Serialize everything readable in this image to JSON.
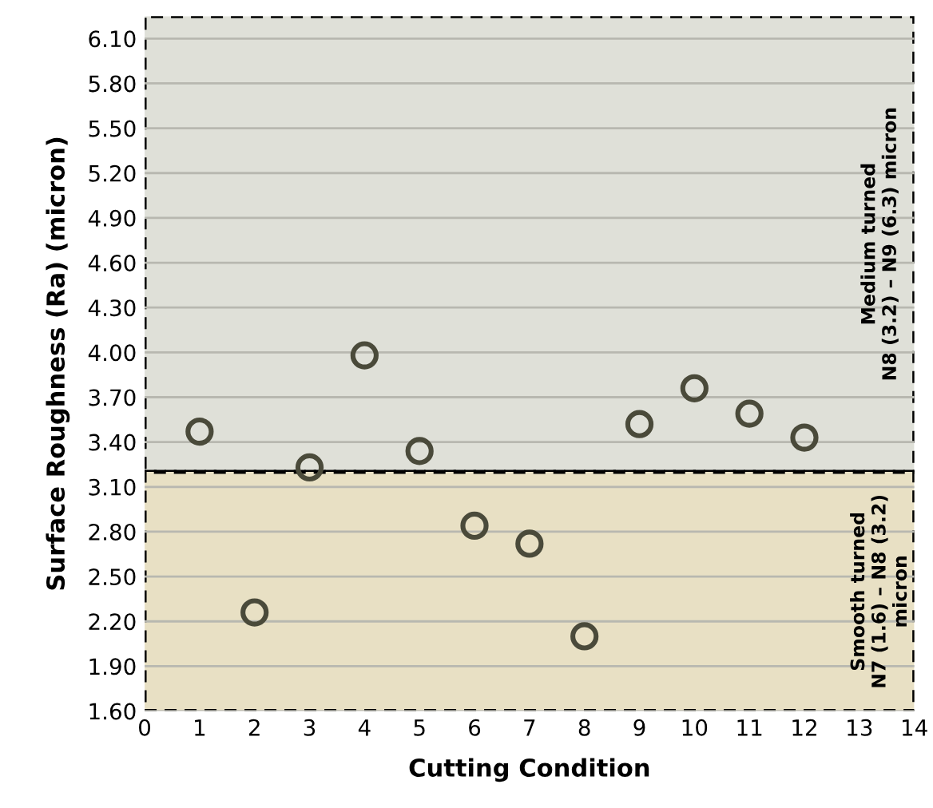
{
  "chart_data": {
    "type": "scatter",
    "xlabel": "Cutting Condition",
    "ylabel": "Surface Roughness (Ra) (micron)",
    "x": [
      1,
      2,
      3,
      4,
      5,
      6,
      7,
      8,
      9,
      10,
      11,
      12
    ],
    "series": [
      {
        "color": "#4a4a3a",
        "values": [
          3.47,
          2.26,
          3.23,
          3.98,
          3.34,
          2.84,
          2.72,
          2.1,
          3.52,
          3.76,
          3.59,
          3.43
        ]
      }
    ],
    "marker": "circle",
    "xlim": [
      0,
      14
    ],
    "xticks": [
      0,
      1,
      2,
      3,
      4,
      5,
      6,
      7,
      8,
      9,
      10,
      11,
      12,
      13,
      14
    ],
    "ylim": [
      1.6,
      6.25
    ],
    "yticks": [
      {
        "value": 1.6,
        "label": "1.60"
      },
      {
        "value": 1.9,
        "label": "1.90"
      },
      {
        "value": 2.2,
        "label": "2.20"
      },
      {
        "value": 2.5,
        "label": "2.50"
      },
      {
        "value": 2.8,
        "label": "2.80"
      },
      {
        "value": 3.1,
        "label": "3.10"
      },
      {
        "value": 3.4,
        "label": "3.40"
      },
      {
        "value": 3.7,
        "label": "3.70"
      },
      {
        "value": 4.0,
        "label": "4.00"
      },
      {
        "value": 4.3,
        "label": "4.30"
      },
      {
        "value": 4.6,
        "label": "4.60"
      },
      {
        "value": 4.9,
        "label": "4.90"
      },
      {
        "value": 5.2,
        "label": "5.20"
      },
      {
        "value": 5.5,
        "label": "5.50"
      },
      {
        "value": 5.8,
        "label": "5.80"
      },
      {
        "value": 6.1,
        "label": "6.10"
      }
    ],
    "grid": "y",
    "bands": [
      {
        "axis": "y",
        "from": 3.2,
        "to": 6.25,
        "label": "Medium turned\nN8 (3.2) – N9 (6.3) micron",
        "color": "#dfe0d8"
      },
      {
        "axis": "y",
        "from": 1.6,
        "to": 3.2,
        "label": "Smooth turned\nN7 (1.6) – N8 (3.2)\nmicron",
        "color": "#e8e0c4"
      }
    ]
  }
}
